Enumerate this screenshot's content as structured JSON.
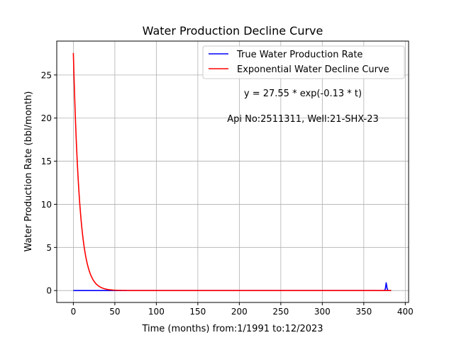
{
  "chart_data": {
    "type": "line",
    "title": "Water Production Decline Curve",
    "xlabel": "Time (months) from:1/1991 to:12/2023",
    "ylabel": "Water Production Rate (bbl/month)",
    "xlim": [
      -20,
      404
    ],
    "ylim": [
      -1.38,
      28.93
    ],
    "x_ticks": [
      0,
      50,
      100,
      150,
      200,
      250,
      300,
      350,
      400
    ],
    "y_ticks": [
      0,
      5,
      10,
      15,
      20,
      25
    ],
    "grid": true,
    "legend_position": "top-right",
    "annotations": [
      "y = 27.55 * exp(-0.13 * t)",
      "Api No:2511311, Well:21-SHX-23"
    ],
    "series": [
      {
        "name": "True Water Production Rate",
        "color": "#0000ff",
        "x": [
          0,
          100,
          200,
          300,
          370,
          375,
          376,
          377,
          378,
          379,
          380,
          383
        ],
        "y": [
          0,
          0,
          0,
          0,
          0,
          0,
          0.2,
          0.9,
          0.3,
          0,
          0,
          0
        ]
      },
      {
        "name": "Exponential Water Decline Curve",
        "color": "#ff0000",
        "model": {
          "a": 27.55,
          "b": -0.13
        },
        "x_range": [
          0,
          383
        ]
      }
    ]
  }
}
